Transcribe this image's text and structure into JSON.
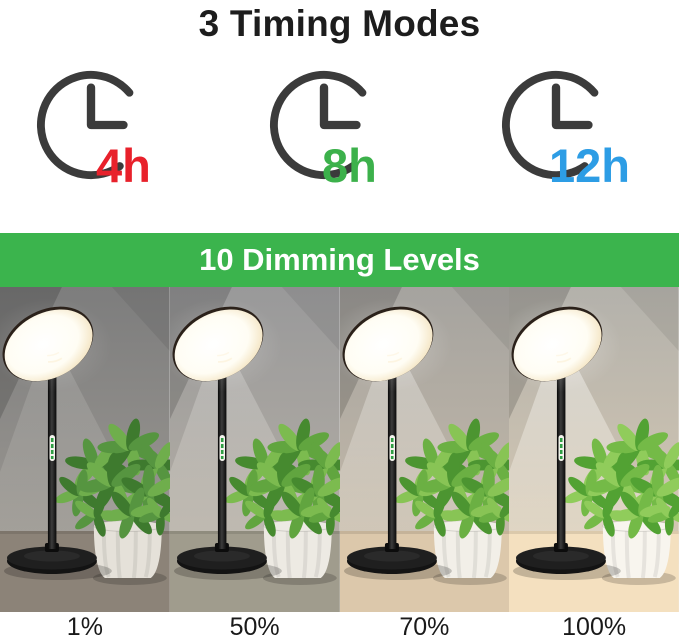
{
  "title": "3 Timing Modes",
  "timing_modes": [
    {
      "icon": "clock-icon",
      "label": "4h",
      "color": "#e8212b"
    },
    {
      "icon": "clock-icon",
      "label": "8h",
      "color": "#3cb14b"
    },
    {
      "icon": "clock-icon",
      "label": "12h",
      "color": "#2d9de5"
    }
  ],
  "banner": {
    "text": "10 Dimming Levels",
    "bg_color": "#3bb44d",
    "text_color": "#ffffff"
  },
  "dimming": {
    "panels": [
      {
        "label": "1%",
        "wall_top": "#7d7d7d",
        "wall_bottom": "#a29e97",
        "beam_opacity": 0.14,
        "table": "#8c8378",
        "pot": "#e5e1d9",
        "greens": [
          "#3e7a2e",
          "#569540",
          "#6fae4c"
        ],
        "glow": 0.5
      },
      {
        "label": "50%",
        "wall_top": "#99999a",
        "wall_bottom": "#bab3a7",
        "beam_opacity": 0.24,
        "table": "#a09c8d",
        "pot": "#edeae3",
        "greens": [
          "#468a2f",
          "#61a53f",
          "#7cbb4f"
        ],
        "glow": 0.68
      },
      {
        "label": "70%",
        "wall_top": "#a5a39f",
        "wall_bottom": "#ccbfab",
        "beam_opacity": 0.32,
        "table": "#dcc8ab",
        "pot": "#f2efe8",
        "greens": [
          "#4c9531",
          "#6bb043",
          "#88c455"
        ],
        "glow": 0.84
      },
      {
        "label": "100%",
        "wall_top": "#b3b1ab",
        "wall_bottom": "#ddceb5",
        "beam_opacity": 0.42,
        "table": "#f4e0bf",
        "pot": "#f8f5ee",
        "greens": [
          "#52a233",
          "#74ba47",
          "#90cc5b"
        ],
        "glow": 1.0
      }
    ]
  }
}
